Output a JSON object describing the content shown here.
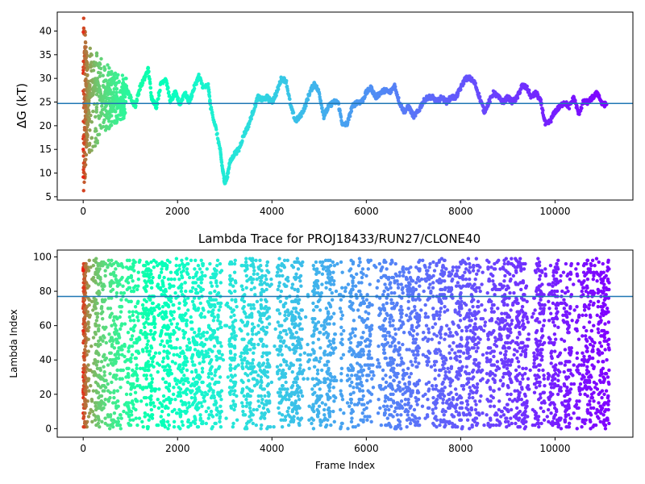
{
  "chart_data": [
    {
      "type": "scatter",
      "title": "",
      "xlabel": "",
      "ylabel": "ΔG (kT)",
      "xlim": [
        -550,
        11650
      ],
      "ylim": [
        4.3,
        44.0
      ],
      "xticks": [
        0,
        2000,
        4000,
        6000,
        8000,
        10000
      ],
      "yticks": [
        5,
        10,
        15,
        20,
        25,
        30,
        35,
        40
      ],
      "hline": 24.7,
      "hline_color": "#1f77b4",
      "colormap": "rainbow",
      "grid": false,
      "trace_points": [
        [
          100,
          26
        ],
        [
          200,
          27
        ],
        [
          300,
          30
        ],
        [
          400,
          25
        ],
        [
          500,
          28
        ],
        [
          600,
          23
        ],
        [
          700,
          26
        ],
        [
          800,
          24
        ],
        [
          900,
          28
        ],
        [
          1000,
          26
        ],
        [
          1100,
          24
        ],
        [
          1200,
          28
        ],
        [
          1300,
          30
        ],
        [
          1380,
          32
        ],
        [
          1450,
          26
        ],
        [
          1550,
          24
        ],
        [
          1650,
          29
        ],
        [
          1750,
          30
        ],
        [
          1850,
          25
        ],
        [
          1950,
          27
        ],
        [
          2050,
          24.5
        ],
        [
          2150,
          27
        ],
        [
          2250,
          25
        ],
        [
          2350,
          28
        ],
        [
          2450,
          30.5
        ],
        [
          2550,
          28
        ],
        [
          2650,
          28.5
        ],
        [
          2700,
          24
        ],
        [
          2800,
          20
        ],
        [
          2900,
          15
        ],
        [
          2950,
          11
        ],
        [
          3000,
          8
        ],
        [
          3050,
          9
        ],
        [
          3100,
          12
        ],
        [
          3200,
          14
        ],
        [
          3300,
          15
        ],
        [
          3400,
          18
        ],
        [
          3500,
          20
        ],
        [
          3600,
          23
        ],
        [
          3700,
          26
        ],
        [
          3800,
          25.5
        ],
        [
          3900,
          26
        ],
        [
          4000,
          25
        ],
        [
          4100,
          27
        ],
        [
          4200,
          30
        ],
        [
          4300,
          29.5
        ],
        [
          4400,
          24
        ],
        [
          4500,
          21
        ],
        [
          4600,
          22
        ],
        [
          4700,
          24
        ],
        [
          4800,
          27
        ],
        [
          4900,
          29
        ],
        [
          5000,
          27
        ],
        [
          5100,
          22
        ],
        [
          5200,
          24
        ],
        [
          5300,
          25
        ],
        [
          5400,
          25
        ],
        [
          5500,
          20
        ],
        [
          5600,
          20.5
        ],
        [
          5700,
          24
        ],
        [
          5800,
          25
        ],
        [
          5900,
          25
        ],
        [
          6000,
          27
        ],
        [
          6100,
          28
        ],
        [
          6200,
          26
        ],
        [
          6300,
          27
        ],
        [
          6400,
          27.5
        ],
        [
          6500,
          27
        ],
        [
          6600,
          28.5
        ],
        [
          6700,
          25
        ],
        [
          6800,
          23
        ],
        [
          6900,
          24
        ],
        [
          7000,
          22
        ],
        [
          7100,
          23
        ],
        [
          7200,
          25
        ],
        [
          7300,
          26
        ],
        [
          7400,
          26
        ],
        [
          7500,
          25
        ],
        [
          7600,
          26
        ],
        [
          7700,
          25
        ],
        [
          7800,
          26
        ],
        [
          7900,
          26
        ],
        [
          8000,
          28
        ],
        [
          8100,
          30
        ],
        [
          8200,
          30
        ],
        [
          8300,
          29
        ],
        [
          8400,
          26
        ],
        [
          8500,
          23
        ],
        [
          8600,
          25
        ],
        [
          8700,
          27
        ],
        [
          8800,
          26
        ],
        [
          8900,
          25
        ],
        [
          9000,
          26
        ],
        [
          9100,
          25
        ],
        [
          9200,
          26
        ],
        [
          9300,
          28.5
        ],
        [
          9400,
          28
        ],
        [
          9500,
          26
        ],
        [
          9600,
          27
        ],
        [
          9700,
          25
        ],
        [
          9800,
          20
        ],
        [
          9900,
          21
        ],
        [
          10000,
          23
        ],
        [
          10100,
          24
        ],
        [
          10200,
          25
        ],
        [
          10300,
          24
        ],
        [
          10400,
          26
        ],
        [
          10500,
          22.5
        ],
        [
          10600,
          25
        ],
        [
          10700,
          25
        ],
        [
          10800,
          26
        ],
        [
          10900,
          27
        ],
        [
          11000,
          24.5
        ],
        [
          11100,
          24.5
        ]
      ]
    },
    {
      "type": "scatter",
      "title": "Lambda Trace for PROJ18433/RUN27/CLONE40",
      "xlabel": "Frame Index",
      "ylabel": "Lambda Index",
      "xlim": [
        -550,
        11650
      ],
      "ylim": [
        -5,
        104
      ],
      "xticks": [
        0,
        2000,
        4000,
        6000,
        8000,
        10000
      ],
      "yticks": [
        0,
        20,
        40,
        60,
        80,
        100
      ],
      "hline": 77,
      "hline_color": "#1f77b4",
      "colormap": "rainbow",
      "grid": false,
      "y_range": [
        0,
        99
      ],
      "x_range": [
        0,
        11150
      ],
      "blocks": [
        [
          2950,
          3100
        ],
        [
          3250,
          3350
        ],
        [
          3950,
          4100
        ],
        [
          4650,
          4850
        ],
        [
          5350,
          5450
        ],
        [
          5500,
          5600
        ],
        [
          6150,
          6250
        ],
        [
          7150,
          7250
        ],
        [
          8450,
          8550
        ],
        [
          9450,
          9550
        ],
        [
          10350,
          10450
        ]
      ]
    }
  ]
}
